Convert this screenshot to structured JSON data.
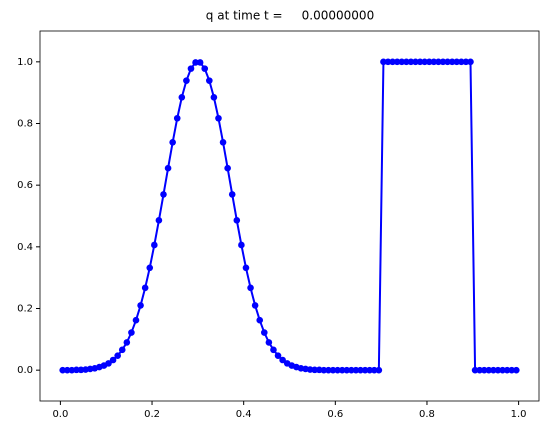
{
  "chart_data": {
    "type": "line",
    "title": "q at time t =     0.00000000",
    "x": [
      0.005,
      0.015,
      0.025,
      0.035,
      0.045,
      0.055,
      0.065,
      0.075,
      0.085,
      0.095,
      0.105,
      0.115,
      0.125,
      0.135,
      0.145,
      0.155,
      0.165,
      0.175,
      0.185,
      0.195,
      0.205,
      0.215,
      0.225,
      0.235,
      0.245,
      0.255,
      0.265,
      0.275,
      0.285,
      0.295,
      0.305,
      0.315,
      0.325,
      0.335,
      0.345,
      0.355,
      0.365,
      0.375,
      0.385,
      0.395,
      0.405,
      0.415,
      0.425,
      0.435,
      0.445,
      0.455,
      0.465,
      0.475,
      0.485,
      0.495,
      0.505,
      0.515,
      0.525,
      0.535,
      0.545,
      0.555,
      0.565,
      0.575,
      0.585,
      0.595,
      0.605,
      0.615,
      0.625,
      0.635,
      0.645,
      0.655,
      0.665,
      0.675,
      0.685,
      0.695,
      0.705,
      0.715,
      0.725,
      0.735,
      0.745,
      0.755,
      0.765,
      0.775,
      0.785,
      0.795,
      0.805,
      0.815,
      0.825,
      0.835,
      0.845,
      0.855,
      0.865,
      0.875,
      0.885,
      0.895,
      0.905,
      0.915,
      0.925,
      0.935,
      0.945,
      0.955,
      0.965,
      0.975,
      0.985,
      0.995
    ],
    "series": [
      {
        "color": "#0000ff",
        "values": [
          0,
          0,
          0,
          0.001,
          0.001,
          0.002,
          0.004,
          0.006,
          0.01,
          0.015,
          0.022,
          0.033,
          0.047,
          0.066,
          0.09,
          0.122,
          0.162,
          0.21,
          0.267,
          0.332,
          0.406,
          0.486,
          0.57,
          0.655,
          0.739,
          0.817,
          0.885,
          0.939,
          0.978,
          0.998,
          0.998,
          0.978,
          0.939,
          0.885,
          0.817,
          0.739,
          0.655,
          0.57,
          0.486,
          0.406,
          0.332,
          0.267,
          0.21,
          0.162,
          0.122,
          0.09,
          0.066,
          0.047,
          0.033,
          0.022,
          0.015,
          0.01,
          0.006,
          0.004,
          0.002,
          0.001,
          0.001,
          0,
          0,
          0,
          0,
          0,
          0,
          0,
          0,
          0,
          0,
          0,
          0,
          0,
          1,
          1,
          1,
          1,
          1,
          1,
          1,
          1,
          1,
          1,
          1,
          1,
          1,
          1,
          1,
          1,
          1,
          1,
          1,
          1,
          0,
          0,
          0,
          0,
          0,
          0,
          0,
          0,
          0,
          0
        ]
      }
    ],
    "xlim": [
      -0.0445,
      1.0445
    ],
    "ylim": [
      -0.1,
      1.1
    ],
    "xticks": [
      {
        "value": 0,
        "label": "0.0"
      },
      0.2,
      0.4,
      0.6,
      0.8,
      {
        "value": 1,
        "label": "1.0"
      }
    ],
    "yticks": [
      {
        "value": 0,
        "label": "0.0"
      },
      0.2,
      0.4,
      0.6,
      0.8,
      {
        "value": 1,
        "label": "1.0"
      }
    ]
  }
}
